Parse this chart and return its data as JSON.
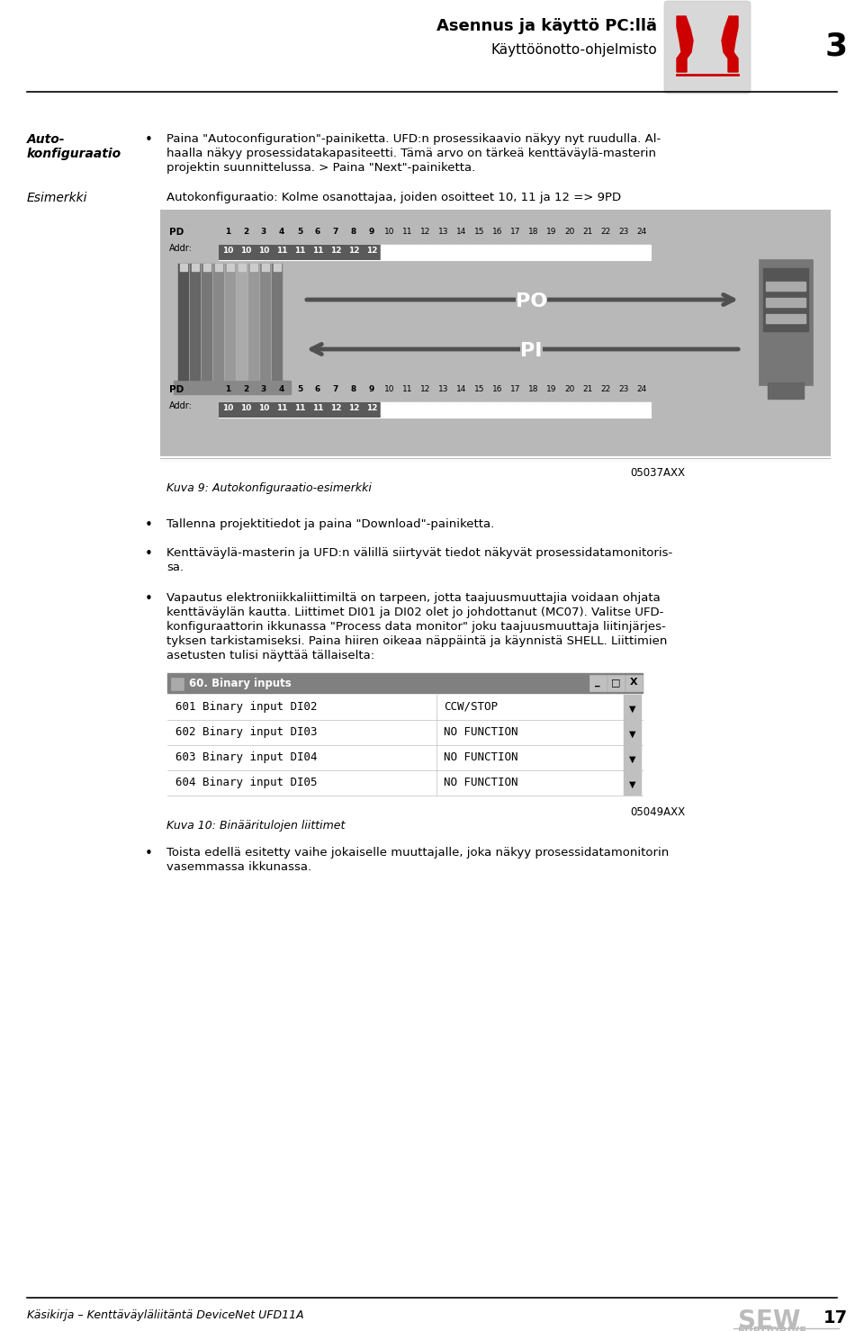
{
  "title_line1": "Asennus ja käyttö PC:llä",
  "title_line2": "Käyttöönotto-ohjelmisto",
  "page_number": "3",
  "bg_color": "#ffffff",
  "footer_text": "Käsikirja – Kenttäväyläliitäntä DeviceNet UFD11A",
  "footer_page": "17",
  "section_label1_line1": "Auto-",
  "section_label1_line2": "konfiguraatio",
  "bullet1_line1": "Paina \"Autoconfiguration\"-painiketta. UFD:n prosessikaavio näkyy nyt ruudulla. Al-",
  "bullet1_line2": "haalla näkyy prosessidatakapasiteetti. Tämä arvo on tärkeä kenttäväylä-masterin",
  "bullet1_line3": "projektin suunnittelussa. > Paina \"Next\"-painiketta.",
  "section_label2": "Esimerkki",
  "example_text": "Autokonfiguraatio: Kolme osanottajaa, joiden osoitteet 10, 11 ja 12 => 9PD",
  "figure_caption": "Kuva 9: Autokonfiguraatio-esimerkki",
  "figure_code": "05037AXX",
  "bullet2": "Tallenna projektitiedot ja paina \"Download\"-painiketta.",
  "bullet3_line1": "Kenttäväylä-masterin ja UFD:n välillä siirtyvät tiedot näkyvät prosessidatamonitoris-",
  "bullet3_line2": "sa.",
  "bullet4_line1": "Vapautus elektroniikkaliittimiltä on tarpeen, jotta taajuusmuuttajia voidaan ohjata",
  "bullet4_line2": "kenttäväylän kautta. Liittimet DI01 ja DI02 olet jo johdottanut (MC07). Valitse UFD-",
  "bullet4_line3": "konfiguraattorin ikkunassa \"Process data monitor\" joku taajuusmuuttaja liitinjärjes-",
  "bullet4_line4": "tyksen tarkistamiseksi. Paina hiiren oikeaa näppäintä ja käynnistä SHELL. Liittimien",
  "bullet4_line5": "asetusten tulisi näyttää tällaiselta:",
  "figure2_caption": "Kuva 10: Binääritulojen liittimet",
  "figure2_code": "05049AXX",
  "bullet5_line1": "Toista edellä esitetty vaihe jokaiselle muuttajalle, joka näkyy prosessidatamonitorin",
  "bullet5_line2": "vasemmassa ikkunassa.",
  "pd_numbers": [
    "1",
    "2",
    "3",
    "4",
    "5",
    "6",
    "7",
    "8",
    "9",
    "10",
    "11",
    "12",
    "13",
    "14",
    "15",
    "16",
    "17",
    "18",
    "19",
    "20",
    "21",
    "22",
    "23",
    "24"
  ],
  "addr_values": [
    "10",
    "10",
    "10",
    "11",
    "11",
    "11",
    "12",
    "12",
    "12"
  ],
  "po_label": "PO",
  "pi_label": "PI",
  "window_title": "60. Binary inputs",
  "table_rows": [
    [
      "601 Binary input DI02",
      "CCW/STOP"
    ],
    [
      "602 Binary input DI03",
      "NO FUNCTION"
    ],
    [
      "603 Binary input DI04",
      "NO FUNCTION"
    ],
    [
      "604 Binary input DI05",
      "NO FUNCTION"
    ]
  ],
  "diag_gray": "#b8b8b8",
  "cell_dark": "#5a5a5a",
  "cell_light": "#e8e8e8",
  "titlebar_color": "#808080",
  "logo_red": "#cc0000",
  "logo_gray": "#d8d8d8"
}
